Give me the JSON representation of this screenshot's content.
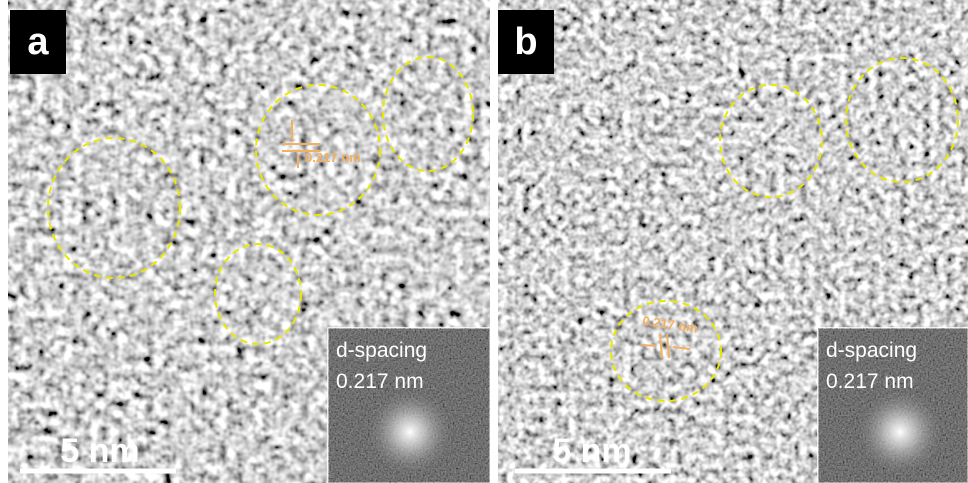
{
  "panels": [
    {
      "label": "a",
      "annotation": "0.217 nm",
      "inset": {
        "title": "d-spacing",
        "value": "0.217 nm"
      },
      "scale_bar": "5 nm"
    },
    {
      "label": "b",
      "annotation": "0.217 nm",
      "inset": {
        "title": "d-spacing",
        "value": "0.217 nm"
      },
      "scale_bar": "5 nm"
    }
  ]
}
